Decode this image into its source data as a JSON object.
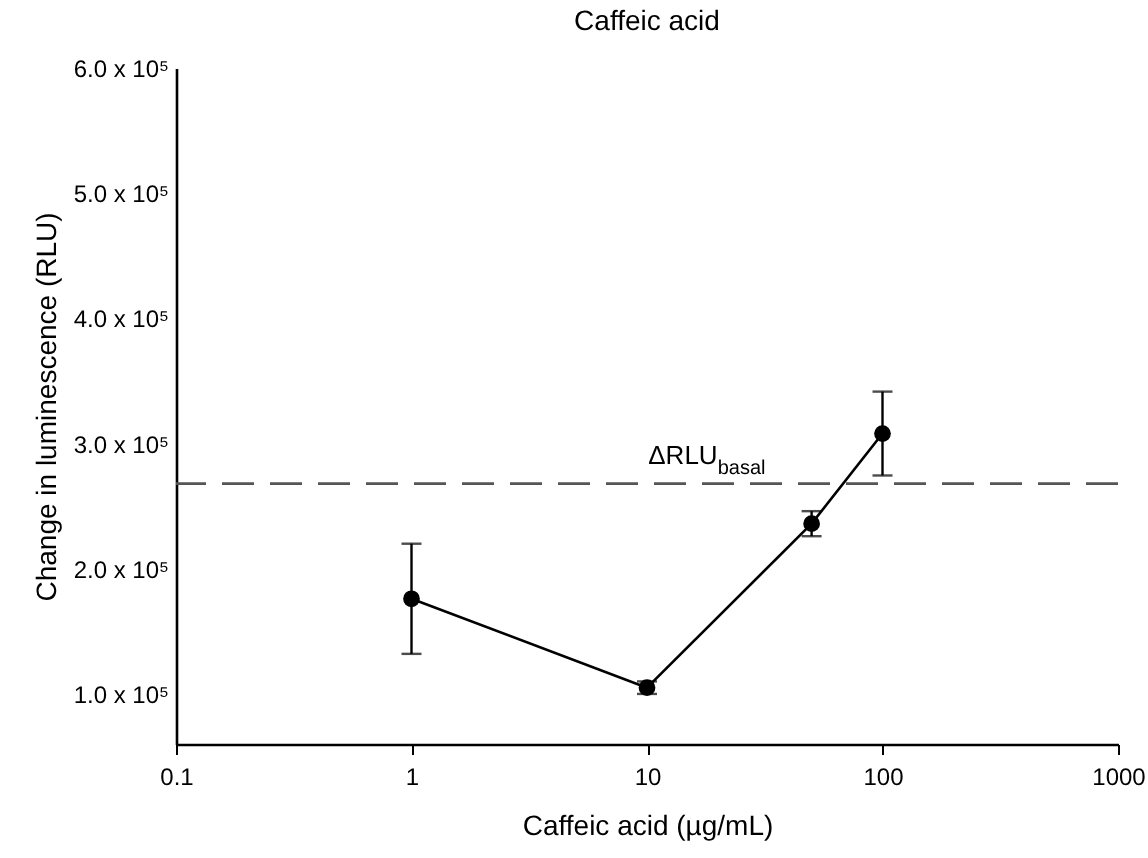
{
  "chart_data": {
    "type": "line",
    "title": "Caffeic acid",
    "xlabel": "Caffeic acid (µg/mL)",
    "ylabel": "Change in luminescence (RLU)",
    "x": [
      1,
      10,
      50,
      100
    ],
    "series": [
      {
        "color": "#000000",
        "values": [
          176000,
          105000,
          236000,
          308000
        ],
        "errors": [
          44000,
          5000,
          10000,
          33500
        ]
      }
    ],
    "log": "x",
    "marker": "circle",
    "line_style": "solid",
    "grid": false,
    "xlim": [
      0.1,
      1000
    ],
    "xticks": [
      0.1,
      1,
      10,
      100,
      {
        "value": 1000,
        "label": "1000"
      }
    ],
    "ylim": [
      60000,
      600000
    ],
    "yticks": [
      {
        "value": 100000,
        "label": "1.0 x 10⁵"
      },
      {
        "value": 200000,
        "label": "2.0 x 10⁵"
      },
      {
        "value": 300000,
        "label": "3.0 x 10⁵"
      },
      {
        "value": 400000,
        "label": "4.0 x 10⁵"
      },
      {
        "value": 500000,
        "label": "5.0 x 10⁵"
      },
      {
        "value": 600000,
        "label": "6.0 x 10⁵"
      }
    ],
    "ref_lines": [
      {
        "axis": "y",
        "value": 268000,
        "label": "ΔRLU$_{basal}$",
        "color": "#555555",
        "line_style": "dashed"
      }
    ]
  }
}
